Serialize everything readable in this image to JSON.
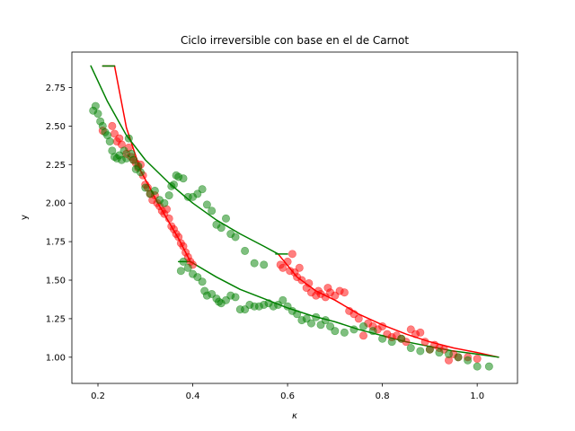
{
  "chart_data": {
    "type": "scatter",
    "title": "Ciclo irreversible con base en el de Carnot",
    "xlabel": "κ",
    "ylabel": "y",
    "xlim": [
      0.145,
      1.085
    ],
    "ylim": [
      0.83,
      2.98
    ],
    "xticks": [
      0.2,
      0.4,
      0.6,
      0.8,
      1.0
    ],
    "xtick_labels": [
      "0.2",
      "0.4",
      "0.6",
      "0.8",
      "1.0"
    ],
    "yticks": [
      1.0,
      1.25,
      1.5,
      1.75,
      2.0,
      2.25,
      2.5,
      2.75
    ],
    "ytick_labels": [
      "1.00",
      "1.25",
      "1.50",
      "1.75",
      "2.00",
      "2.25",
      "2.50",
      "2.75"
    ],
    "grid": false,
    "legend": "none",
    "colors": {
      "red": "#ff0000",
      "green": "#008000"
    },
    "lines": [
      {
        "color": "#ff0000",
        "x": [
          0.235,
          0.26,
          0.29,
          0.33,
          0.37,
          0.395
        ],
        "y": [
          2.89,
          2.49,
          2.21,
          1.98,
          1.77,
          1.62
        ]
      },
      {
        "color": "#ff0000",
        "x": [
          0.58,
          0.62,
          0.66,
          0.7,
          0.75,
          0.8,
          0.85,
          0.9,
          0.95,
          1.0,
          1.045
        ],
        "y": [
          1.67,
          1.52,
          1.43,
          1.37,
          1.28,
          1.21,
          1.15,
          1.1,
          1.06,
          1.03,
          1.0
        ]
      },
      {
        "color": "#ff0000",
        "x": [
          0.21,
          0.235
        ],
        "y": [
          2.89,
          2.89
        ]
      },
      {
        "color": "#008000",
        "x": [
          0.185,
          0.22,
          0.26,
          0.3,
          0.35,
          0.4,
          0.45,
          0.5,
          0.55,
          0.58
        ],
        "y": [
          2.89,
          2.66,
          2.44,
          2.28,
          2.13,
          2.0,
          1.89,
          1.8,
          1.72,
          1.67
        ]
      },
      {
        "color": "#008000",
        "x": [
          0.21,
          0.235
        ],
        "y": [
          2.89,
          2.89
        ]
      },
      {
        "color": "#008000",
        "x": [
          0.575,
          0.6
        ],
        "y": [
          1.67,
          1.67
        ]
      },
      {
        "color": "#008000",
        "x": [
          0.37,
          0.395
        ],
        "y": [
          1.62,
          1.62
        ]
      },
      {
        "color": "#008000",
        "x": [
          0.395,
          0.45,
          0.5,
          0.55,
          0.6,
          0.65,
          0.7,
          0.75,
          0.8,
          0.85,
          0.9,
          0.95,
          1.0,
          1.045
        ],
        "y": [
          1.62,
          1.52,
          1.44,
          1.38,
          1.32,
          1.27,
          1.23,
          1.18,
          1.14,
          1.1,
          1.07,
          1.04,
          1.02,
          1.0
        ]
      }
    ],
    "series": [
      {
        "color": "#ff0000",
        "points": [
          [
            0.21,
            2.47
          ],
          [
            0.23,
            2.5
          ],
          [
            0.235,
            2.45
          ],
          [
            0.24,
            2.4
          ],
          [
            0.245,
            2.42
          ],
          [
            0.25,
            2.38
          ],
          [
            0.26,
            2.32
          ],
          [
            0.265,
            2.36
          ],
          [
            0.27,
            2.3
          ],
          [
            0.275,
            2.28
          ],
          [
            0.28,
            2.26
          ],
          [
            0.285,
            2.23
          ],
          [
            0.29,
            2.25
          ],
          [
            0.295,
            2.18
          ],
          [
            0.3,
            2.12
          ],
          [
            0.305,
            2.1
          ],
          [
            0.31,
            2.06
          ],
          [
            0.315,
            2.02
          ],
          [
            0.32,
            2.05
          ],
          [
            0.325,
            2.0
          ],
          [
            0.33,
            1.98
          ],
          [
            0.335,
            1.95
          ],
          [
            0.34,
            1.93
          ],
          [
            0.345,
            1.96
          ],
          [
            0.35,
            1.9
          ],
          [
            0.355,
            1.85
          ],
          [
            0.36,
            1.83
          ],
          [
            0.365,
            1.8
          ],
          [
            0.37,
            1.78
          ],
          [
            0.375,
            1.74
          ],
          [
            0.38,
            1.72
          ],
          [
            0.385,
            1.68
          ],
          [
            0.39,
            1.65
          ],
          [
            0.4,
            1.6
          ],
          [
            0.395,
            1.62
          ],
          [
            0.585,
            1.6
          ],
          [
            0.59,
            1.58
          ],
          [
            0.6,
            1.62
          ],
          [
            0.605,
            1.56
          ],
          [
            0.61,
            1.67
          ],
          [
            0.615,
            1.55
          ],
          [
            0.62,
            1.52
          ],
          [
            0.625,
            1.58
          ],
          [
            0.63,
            1.5
          ],
          [
            0.64,
            1.45
          ],
          [
            0.645,
            1.48
          ],
          [
            0.65,
            1.42
          ],
          [
            0.66,
            1.4
          ],
          [
            0.665,
            1.43
          ],
          [
            0.67,
            1.41
          ],
          [
            0.68,
            1.39
          ],
          [
            0.685,
            1.45
          ],
          [
            0.69,
            1.42
          ],
          [
            0.7,
            1.4
          ],
          [
            0.71,
            1.43
          ],
          [
            0.72,
            1.42
          ],
          [
            0.73,
            1.3
          ],
          [
            0.74,
            1.28
          ],
          [
            0.75,
            1.25
          ],
          [
            0.76,
            1.14
          ],
          [
            0.77,
            1.22
          ],
          [
            0.78,
            1.2
          ],
          [
            0.79,
            1.18
          ],
          [
            0.8,
            1.2
          ],
          [
            0.81,
            1.15
          ],
          [
            0.82,
            1.13
          ],
          [
            0.83,
            1.14
          ],
          [
            0.84,
            1.12
          ],
          [
            0.85,
            1.1
          ],
          [
            0.86,
            1.18
          ],
          [
            0.87,
            1.15
          ],
          [
            0.88,
            1.16
          ],
          [
            0.89,
            1.1
          ],
          [
            0.9,
            1.05
          ],
          [
            0.91,
            1.08
          ],
          [
            0.92,
            1.06
          ],
          [
            0.93,
            1.05
          ],
          [
            0.94,
            0.98
          ],
          [
            0.95,
            1.02
          ],
          [
            0.96,
            1.0
          ],
          [
            0.98,
            1.0
          ],
          [
            1.0,
            0.99
          ]
        ]
      },
      {
        "color": "#008000",
        "points": [
          [
            0.19,
            2.6
          ],
          [
            0.195,
            2.63
          ],
          [
            0.2,
            2.58
          ],
          [
            0.205,
            2.53
          ],
          [
            0.21,
            2.5
          ],
          [
            0.215,
            2.46
          ],
          [
            0.22,
            2.44
          ],
          [
            0.225,
            2.4
          ],
          [
            0.23,
            2.34
          ],
          [
            0.235,
            2.3
          ],
          [
            0.24,
            2.29
          ],
          [
            0.245,
            2.31
          ],
          [
            0.25,
            2.28
          ],
          [
            0.255,
            2.34
          ],
          [
            0.26,
            2.29
          ],
          [
            0.265,
            2.42
          ],
          [
            0.27,
            2.32
          ],
          [
            0.275,
            2.28
          ],
          [
            0.28,
            2.22
          ],
          [
            0.285,
            2.24
          ],
          [
            0.29,
            2.2
          ],
          [
            0.3,
            2.1
          ],
          [
            0.31,
            2.06
          ],
          [
            0.32,
            2.08
          ],
          [
            0.33,
            2.02
          ],
          [
            0.34,
            2.0
          ],
          [
            0.35,
            2.05
          ],
          [
            0.355,
            2.11
          ],
          [
            0.36,
            2.12
          ],
          [
            0.365,
            2.18
          ],
          [
            0.37,
            2.17
          ],
          [
            0.38,
            2.16
          ],
          [
            0.39,
            2.04
          ],
          [
            0.4,
            2.04
          ],
          [
            0.41,
            2.06
          ],
          [
            0.42,
            2.09
          ],
          [
            0.43,
            1.99
          ],
          [
            0.44,
            1.95
          ],
          [
            0.45,
            1.86
          ],
          [
            0.46,
            1.84
          ],
          [
            0.47,
            1.9
          ],
          [
            0.48,
            1.8
          ],
          [
            0.49,
            1.78
          ],
          [
            0.51,
            1.69
          ],
          [
            0.53,
            1.61
          ],
          [
            0.55,
            1.6
          ],
          [
            0.375,
            1.56
          ],
          [
            0.38,
            1.62
          ],
          [
            0.39,
            1.58
          ],
          [
            0.4,
            1.54
          ],
          [
            0.41,
            1.52
          ],
          [
            0.42,
            1.49
          ],
          [
            0.425,
            1.43
          ],
          [
            0.43,
            1.4
          ],
          [
            0.44,
            1.41
          ],
          [
            0.45,
            1.38
          ],
          [
            0.455,
            1.36
          ],
          [
            0.46,
            1.35
          ],
          [
            0.47,
            1.37
          ],
          [
            0.48,
            1.4
          ],
          [
            0.49,
            1.39
          ],
          [
            0.5,
            1.31
          ],
          [
            0.51,
            1.31
          ],
          [
            0.52,
            1.34
          ],
          [
            0.53,
            1.33
          ],
          [
            0.54,
            1.33
          ],
          [
            0.55,
            1.34
          ],
          [
            0.56,
            1.35
          ],
          [
            0.57,
            1.33
          ],
          [
            0.58,
            1.34
          ],
          [
            0.59,
            1.37
          ],
          [
            0.6,
            1.33
          ],
          [
            0.61,
            1.3
          ],
          [
            0.62,
            1.28
          ],
          [
            0.63,
            1.24
          ],
          [
            0.64,
            1.25
          ],
          [
            0.65,
            1.22
          ],
          [
            0.66,
            1.26
          ],
          [
            0.67,
            1.21
          ],
          [
            0.68,
            1.24
          ],
          [
            0.69,
            1.2
          ],
          [
            0.7,
            1.17
          ],
          [
            0.72,
            1.16
          ],
          [
            0.74,
            1.18
          ],
          [
            0.76,
            1.2
          ],
          [
            0.78,
            1.17
          ],
          [
            0.8,
            1.12
          ],
          [
            0.82,
            1.1
          ],
          [
            0.84,
            1.12
          ],
          [
            0.86,
            1.06
          ],
          [
            0.88,
            1.04
          ],
          [
            0.9,
            1.05
          ],
          [
            0.92,
            1.03
          ],
          [
            0.94,
            1.02
          ],
          [
            0.96,
            1.0
          ],
          [
            0.98,
            0.98
          ],
          [
            1.0,
            0.94
          ],
          [
            1.025,
            0.94
          ]
        ]
      }
    ]
  }
}
